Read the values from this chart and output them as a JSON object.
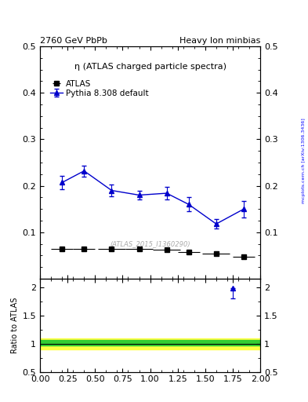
{
  "title_left": "2760 GeV PbPb",
  "title_right": "Heavy Ion minbias",
  "main_title": "η (ATLAS charged particle spectra)",
  "watermark": "(ATLAS_2015_I1360290)",
  "side_label": "mcplots.cern.ch [arXiv:1306.3436]",
  "legend_atlas": "ATLAS",
  "legend_pythia": "Pythia 8.308 default",
  "atlas_x": [
    0.2,
    0.4,
    0.65,
    0.9,
    1.15,
    1.35,
    1.6,
    1.85
  ],
  "atlas_y": [
    0.065,
    0.065,
    0.065,
    0.065,
    0.063,
    0.057,
    0.055,
    0.048
  ],
  "pythia_x": [
    0.2,
    0.4,
    0.65,
    0.9,
    1.15,
    1.35,
    1.6,
    1.85
  ],
  "pythia_y": [
    0.207,
    0.232,
    0.19,
    0.18,
    0.184,
    0.16,
    0.118,
    0.15
  ],
  "pythia_yerr": [
    0.015,
    0.012,
    0.012,
    0.01,
    0.013,
    0.015,
    0.01,
    0.018
  ],
  "atlas_xerr": [
    0.1,
    0.1,
    0.125,
    0.125,
    0.125,
    0.1,
    0.125,
    0.1
  ],
  "ratio_x": [
    1.75
  ],
  "ratio_y": [
    1.98
  ],
  "ratio_yerr_lo": [
    0.18
  ],
  "ratio_yerr_hi": [
    0.0
  ],
  "xlim": [
    0,
    2
  ],
  "main_ylim": [
    0,
    0.5
  ],
  "ratio_ylim": [
    0.5,
    2.15
  ],
  "main_yticks": [
    0.1,
    0.2,
    0.3,
    0.4,
    0.5
  ],
  "main_ytick_labels": [
    "0.1",
    "0.2",
    "0.3",
    "0.4",
    "0.5"
  ],
  "ratio_yticks": [
    0.5,
    1.0,
    1.5,
    2.0
  ],
  "ratio_ytick_labels": [
    "0.5",
    "1",
    "1.5",
    "2"
  ],
  "ratio_ylabel": "Ratio to ATLAS",
  "green_band_lower": 0.97,
  "green_band_upper": 1.07,
  "yellow_band_lower": 0.9,
  "yellow_band_upper": 1.1,
  "atlas_color": "#000000",
  "pythia_color": "#0000cc",
  "green_color": "#33cc33",
  "yellow_color": "#ffff44",
  "ratio_line_color": "#000000",
  "bg_color": "#ffffff"
}
